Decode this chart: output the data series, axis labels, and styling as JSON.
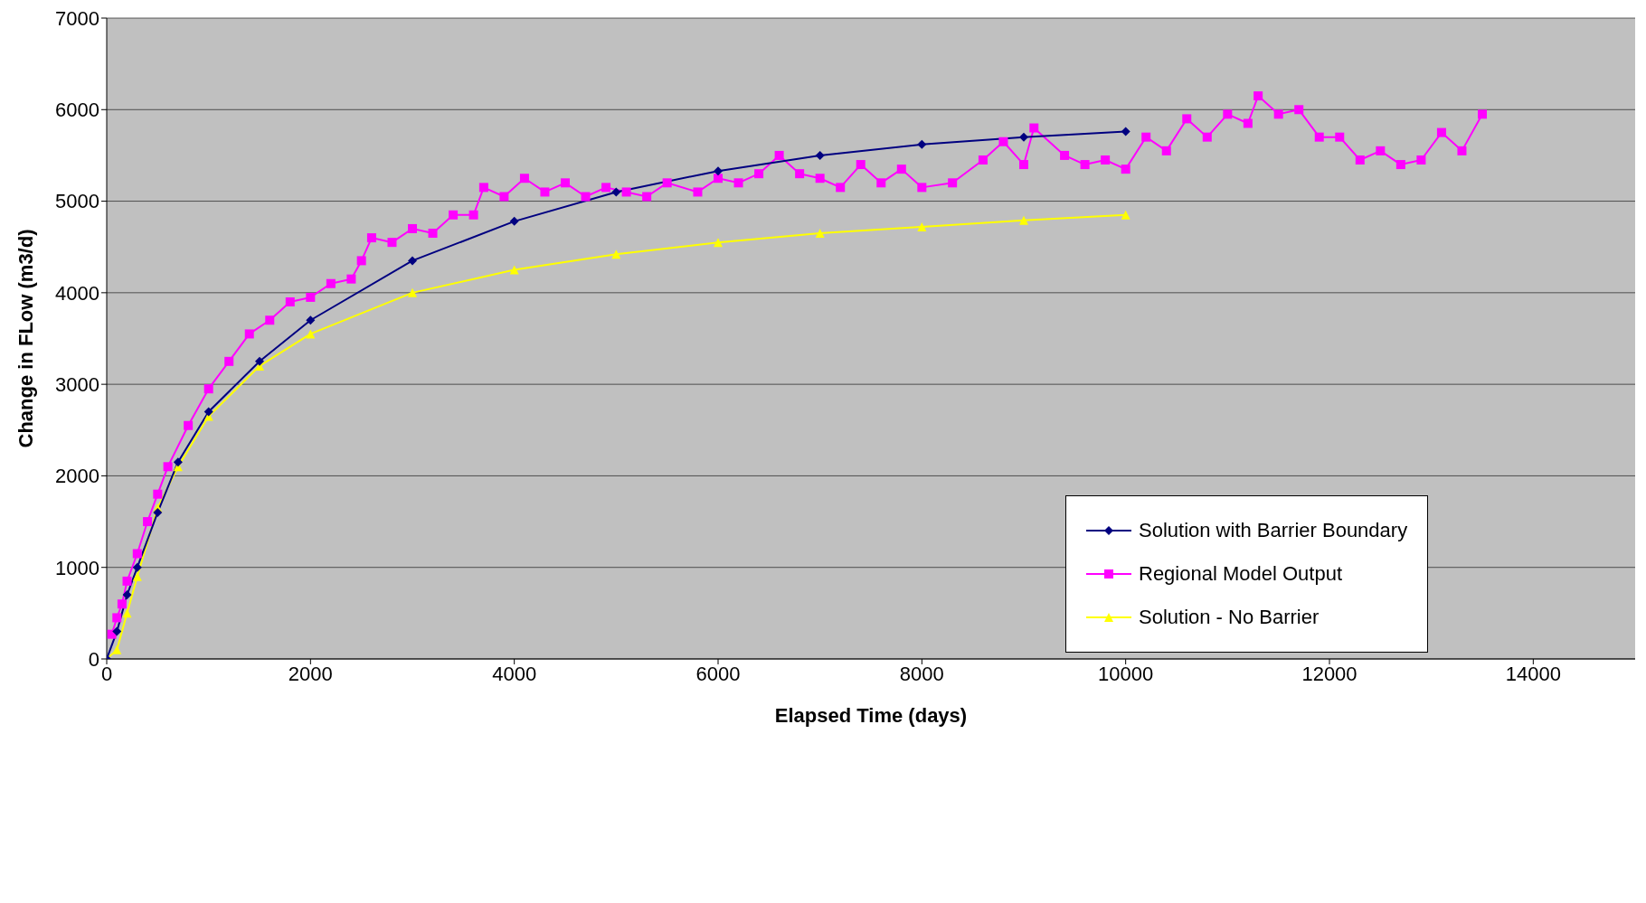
{
  "chart_data": {
    "type": "line",
    "xlabel": "Elapsed Time (days)",
    "ylabel": "Change in FLow (m3/d)",
    "xlim": [
      0,
      15000
    ],
    "xticks": [
      0,
      2000,
      4000,
      6000,
      8000,
      10000,
      12000,
      14000
    ],
    "ylim": [
      0,
      7000
    ],
    "yticks": [
      0,
      1000,
      2000,
      3000,
      4000,
      5000,
      6000,
      7000
    ],
    "grid": "y",
    "legend": "bottom right",
    "series": [
      {
        "name": "Solution with Barrier Boundary",
        "color": "#000080",
        "marker": "diamond",
        "x": [
          0,
          100,
          200,
          300,
          500,
          700,
          1000,
          1500,
          2000,
          3000,
          4000,
          5000,
          6000,
          7000,
          8000,
          9000,
          10000
        ],
        "values": [
          0,
          300,
          700,
          1000,
          1600,
          2150,
          2700,
          3250,
          3700,
          4350,
          4780,
          5100,
          5330,
          5500,
          5620,
          5700,
          5760
        ]
      },
      {
        "name": "Regional Model Output",
        "color": "#ff00ff",
        "marker": "square",
        "x": [
          50,
          100,
          150,
          200,
          300,
          400,
          500,
          600,
          800,
          1000,
          1200,
          1400,
          1600,
          1800,
          2000,
          2200,
          2400,
          2500,
          2600,
          2800,
          3000,
          3200,
          3400,
          3600,
          3700,
          3900,
          4100,
          4300,
          4500,
          4700,
          4900,
          5100,
          5300,
          5500,
          5800,
          6000,
          6200,
          6400,
          6600,
          6800,
          7000,
          7200,
          7400,
          7600,
          7800,
          8000,
          8300,
          8600,
          8800,
          9000,
          9100,
          9400,
          9600,
          9800,
          10000,
          10200,
          10400,
          10600,
          10800,
          11000,
          11200,
          11300,
          11500,
          11700,
          11900,
          12100,
          12300,
          12500,
          12700,
          12900,
          13100,
          13300,
          13500
        ],
        "values": [
          270,
          450,
          600,
          850,
          1150,
          1500,
          1800,
          2100,
          2550,
          2950,
          3250,
          3550,
          3700,
          3900,
          3950,
          4100,
          4150,
          4350,
          4600,
          4550,
          4700,
          4650,
          4850,
          4850,
          5150,
          5050,
          5250,
          5100,
          5200,
          5050,
          5150,
          5100,
          5050,
          5200,
          5100,
          5250,
          5200,
          5300,
          5500,
          5300,
          5250,
          5150,
          5400,
          5200,
          5350,
          5150,
          5200,
          5450,
          5650,
          5400,
          5800,
          5500,
          5400,
          5450,
          5350,
          5700,
          5550,
          5900,
          5700,
          5950,
          5850,
          6150,
          5950,
          6000,
          5700,
          5700,
          5450,
          5550,
          5400,
          5450,
          5750,
          5550,
          5950
        ]
      },
      {
        "name": "Solution - No Barrier",
        "color": "#ffff00",
        "marker": "triangle",
        "x": [
          0,
          100,
          200,
          300,
          500,
          700,
          1000,
          1500,
          2000,
          3000,
          4000,
          5000,
          6000,
          7000,
          8000,
          9000,
          10000
        ],
        "values": [
          0,
          100,
          500,
          900,
          1650,
          2100,
          2650,
          3200,
          3550,
          4000,
          4250,
          4420,
          4550,
          4650,
          4720,
          4790,
          4850
        ]
      }
    ]
  }
}
